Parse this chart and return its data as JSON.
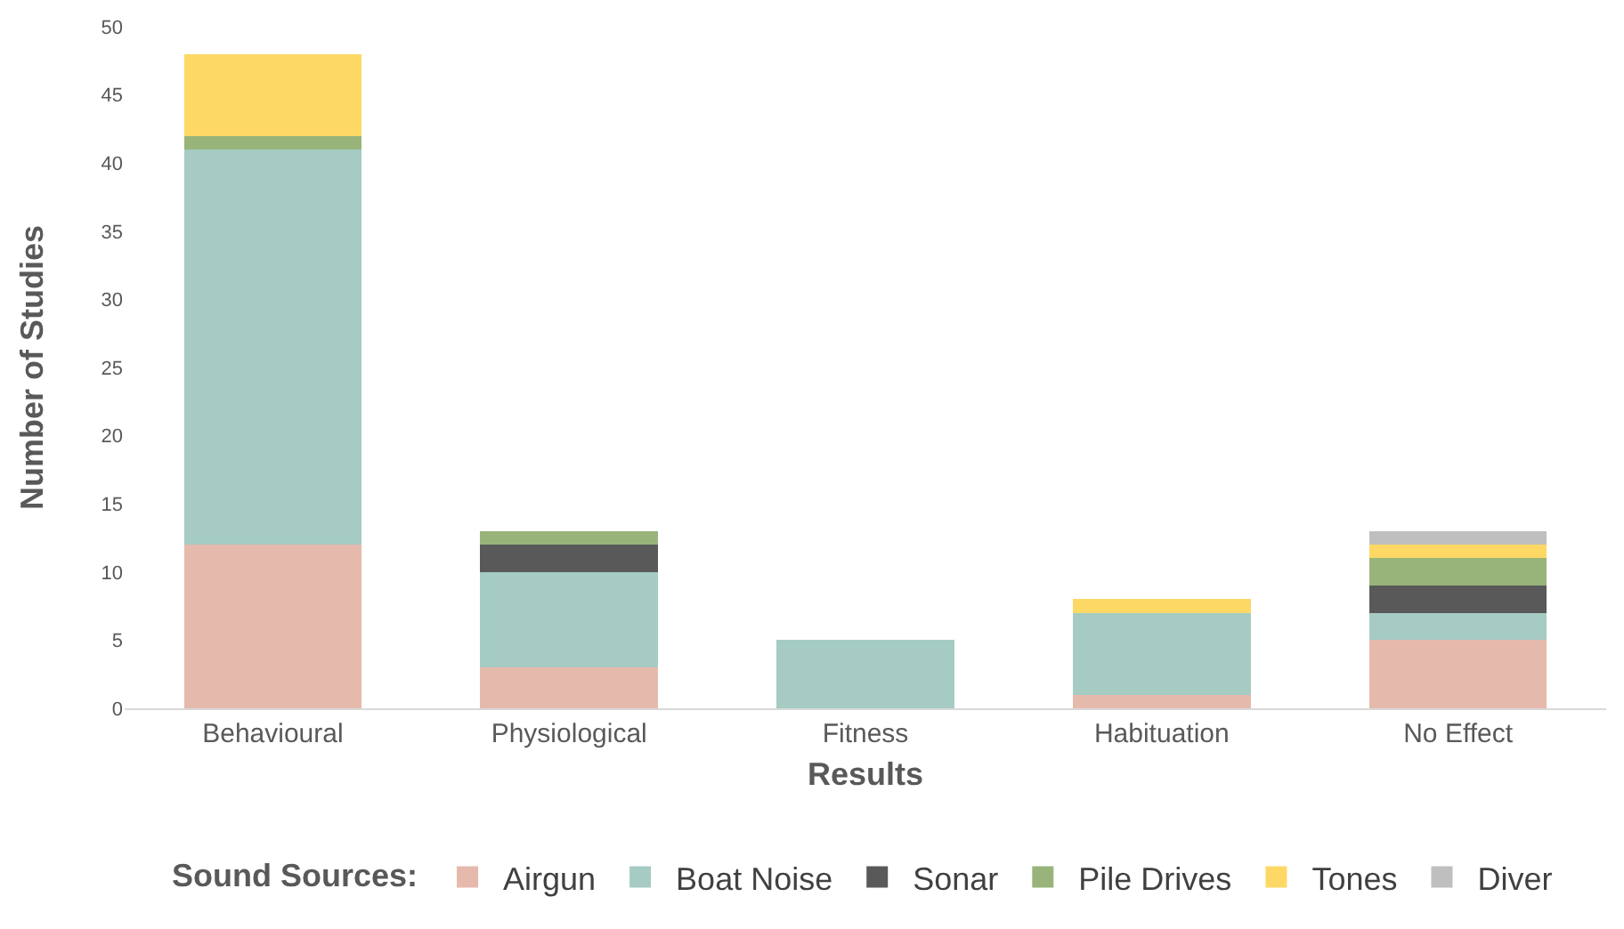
{
  "chart_data": {
    "type": "bar",
    "stacked": true,
    "xlabel": "Results",
    "ylabel": "Number of Studies",
    "legend_title": "Sound Sources:",
    "legend": "bottom",
    "grid": false,
    "categories": [
      "Behavioural",
      "Physiological",
      "Fitness",
      "Habituation",
      "No Effect"
    ],
    "ylim": [
      0,
      50
    ],
    "yticks": [
      0,
      5,
      10,
      15,
      20,
      25,
      30,
      35,
      40,
      45,
      50
    ],
    "series": [
      {
        "name": "Airgun",
        "color": "#e6b9ad",
        "values": [
          12,
          3,
          0,
          1,
          5
        ]
      },
      {
        "name": "Boat Noise",
        "color": "#a5cbc3",
        "values": [
          29,
          7,
          5,
          6,
          2
        ]
      },
      {
        "name": "Sonar",
        "color": "#595959",
        "values": [
          0,
          2,
          0,
          0,
          2
        ]
      },
      {
        "name": "Pile Drives",
        "color": "#98b47a",
        "values": [
          1,
          1,
          0,
          0,
          2
        ]
      },
      {
        "name": "Tones",
        "color": "#fdd865",
        "values": [
          6,
          0,
          0,
          1,
          1
        ]
      },
      {
        "name": "Diver",
        "color": "#bfbfbf",
        "values": [
          0,
          0,
          0,
          0,
          1
        ]
      }
    ]
  }
}
